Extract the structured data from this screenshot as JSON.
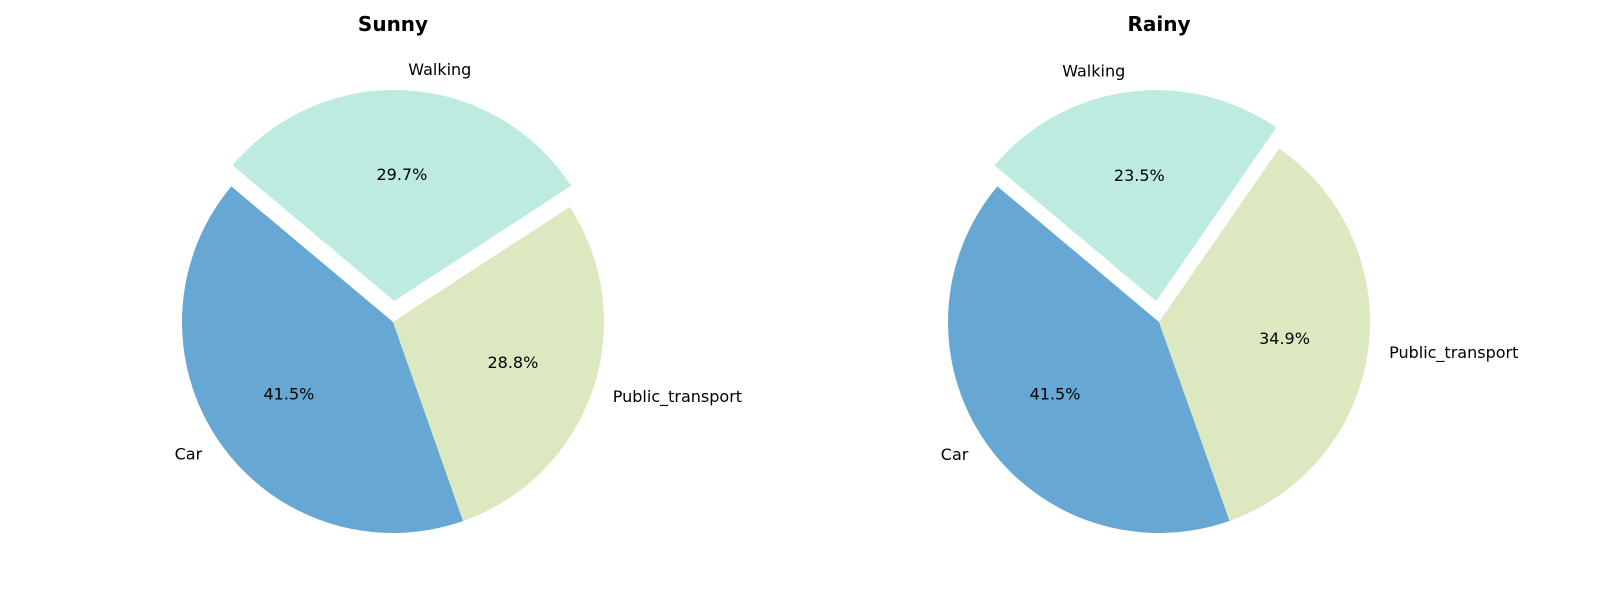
{
  "chart_data": [
    {
      "type": "pie",
      "title": "Sunny",
      "categories": [
        "Car",
        "Public_transport",
        "Walking"
      ],
      "values": [
        41.5,
        28.8,
        29.7
      ],
      "percent_labels": [
        "41.5%",
        "28.8%",
        "29.7%"
      ],
      "colors": [
        "#66a8d3",
        "#dce9c0",
        "#bdebe0"
      ],
      "exploded": [
        false,
        false,
        true
      ],
      "start_angle_deg": 140,
      "direction": "counterclockwise"
    },
    {
      "type": "pie",
      "title": "Rainy",
      "categories": [
        "Car",
        "Public_transport",
        "Walking"
      ],
      "values": [
        41.5,
        34.9,
        23.5
      ],
      "percent_labels": [
        "41.5%",
        "34.9%",
        "23.5%"
      ],
      "colors": [
        "#66a8d3",
        "#dce9c0",
        "#bdebe0"
      ],
      "exploded": [
        false,
        false,
        true
      ],
      "start_angle_deg": 140,
      "direction": "counterclockwise"
    }
  ]
}
